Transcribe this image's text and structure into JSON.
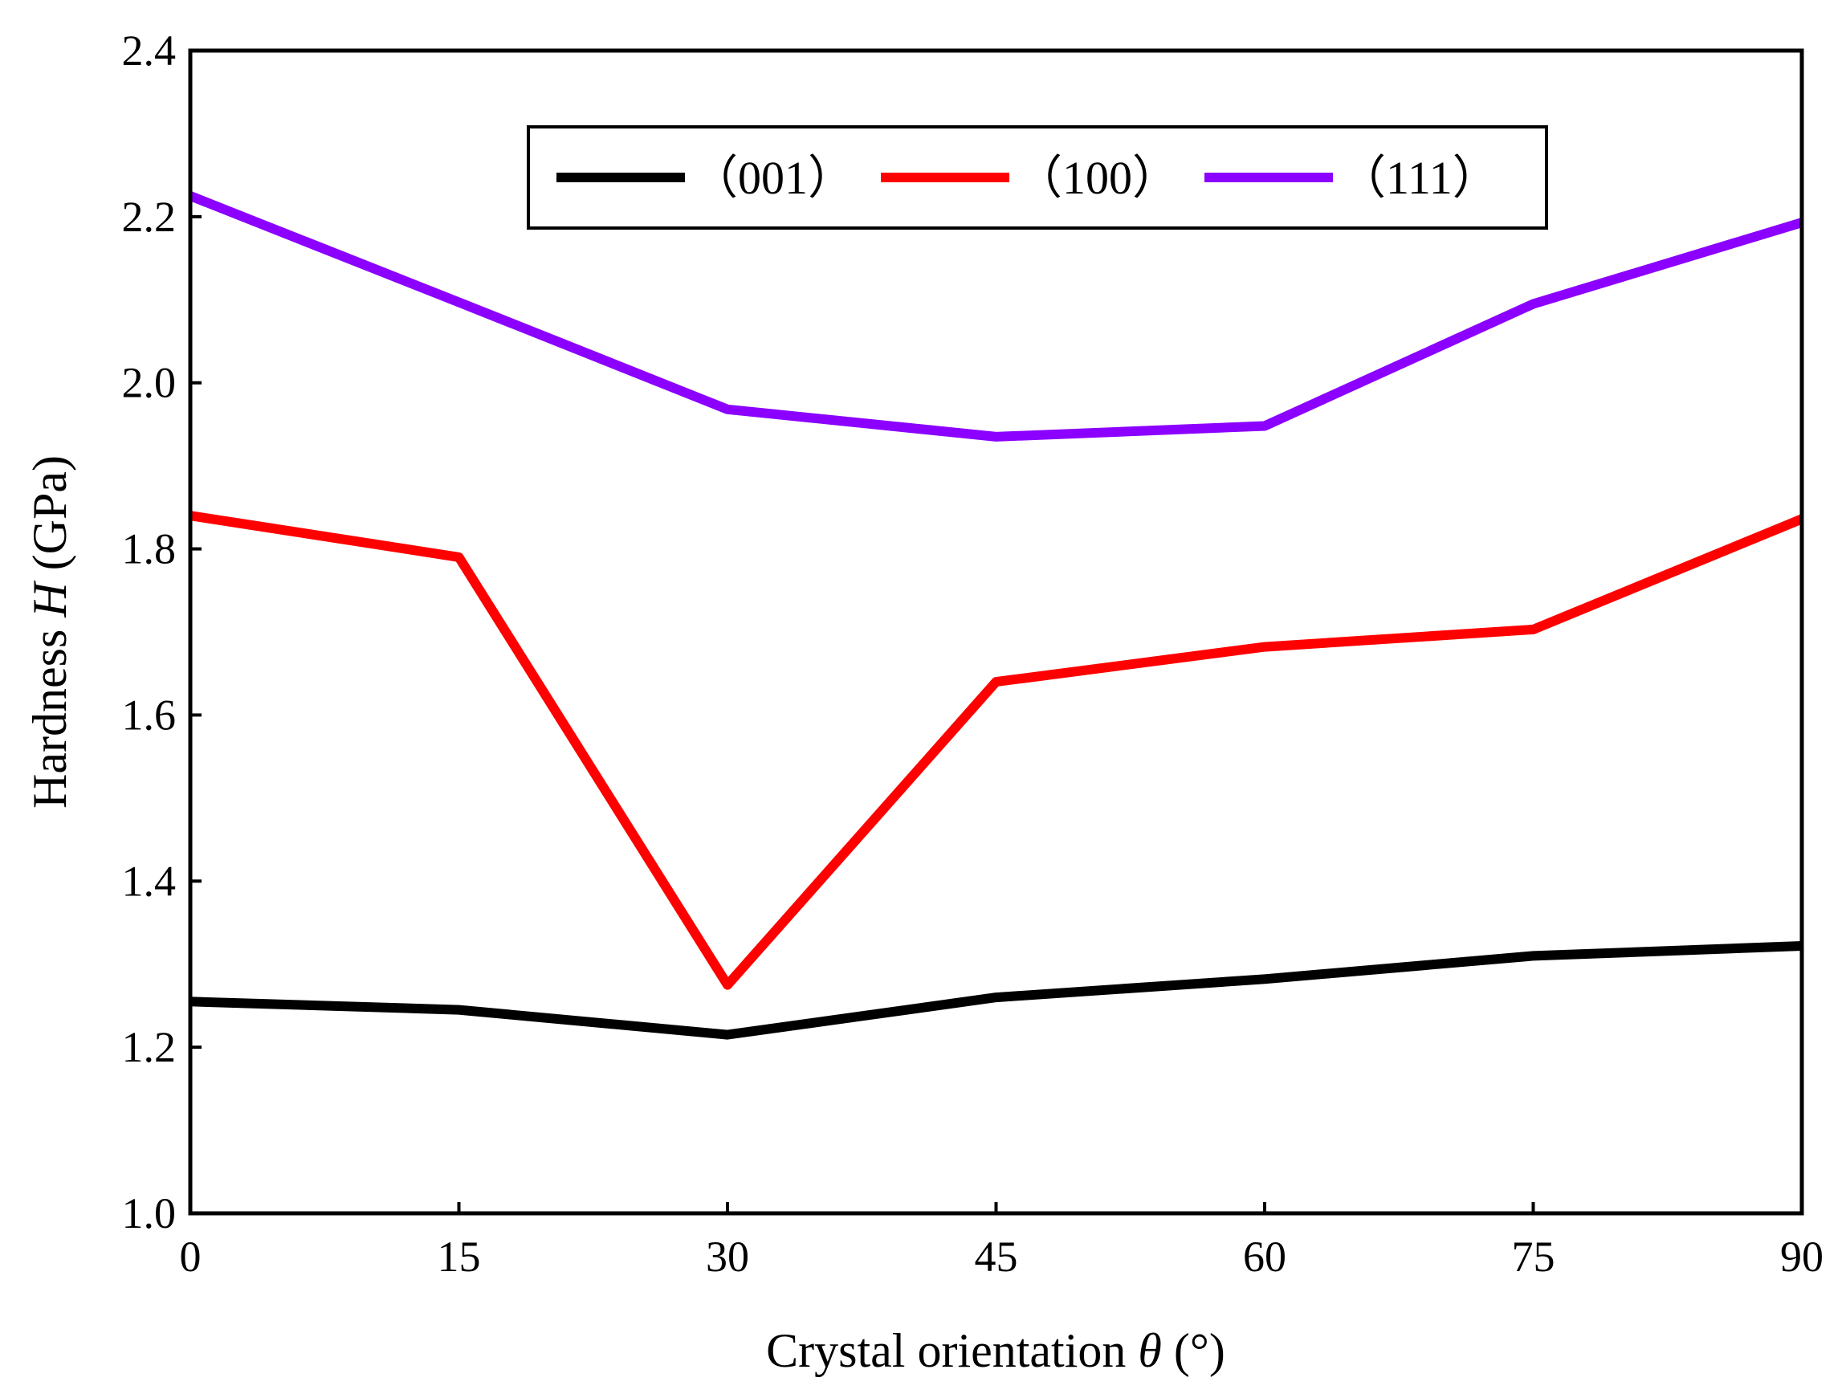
{
  "chart_data": {
    "type": "line",
    "title": "",
    "xlabel_prefix": "Crystal orientation ",
    "xlabel_symbol": "θ",
    "xlabel_suffix": " (°)",
    "ylabel_prefix": "Hardness ",
    "ylabel_symbol": "H",
    "ylabel_suffix": " (GPa)",
    "x": [
      0,
      15,
      30,
      45,
      60,
      75,
      90
    ],
    "xlim": [
      0,
      90
    ],
    "ylim": [
      1.0,
      2.4
    ],
    "xticks": [
      "0",
      "15",
      "30",
      "45",
      "60",
      "75",
      "90"
    ],
    "yticks": [
      "1.0",
      "1.2",
      "1.4",
      "1.6",
      "1.8",
      "2.0",
      "2.2",
      "2.4"
    ],
    "grid": false,
    "legend_position": "top-center",
    "series": [
      {
        "name": "（001）",
        "color": "#000000",
        "values": [
          1.255,
          1.245,
          1.215,
          1.26,
          1.282,
          1.31,
          1.322
        ]
      },
      {
        "name": "（100）",
        "color": "#ff0000",
        "values": [
          1.84,
          1.79,
          1.275,
          1.64,
          1.682,
          1.703,
          1.836
        ]
      },
      {
        "name": "（111）",
        "color": "#8b00ff",
        "values": [
          2.225,
          2.097,
          1.968,
          1.935,
          1.948,
          2.095,
          2.193
        ]
      }
    ]
  }
}
